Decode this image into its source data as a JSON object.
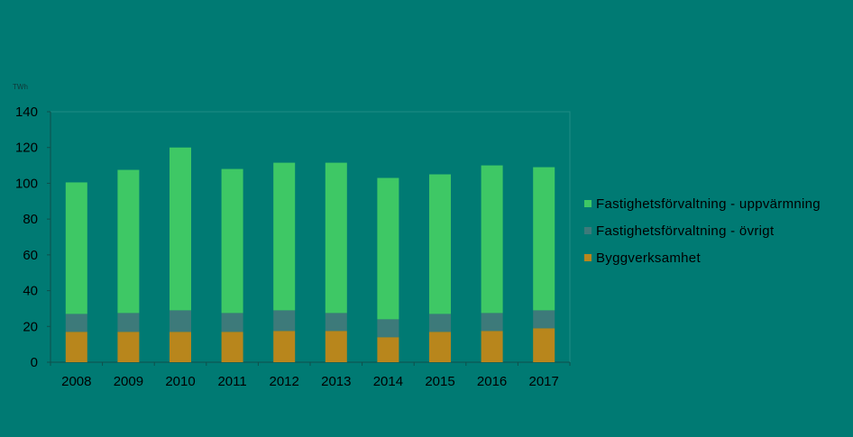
{
  "chart_data": {
    "type": "bar",
    "stacked": true,
    "unit_label": "TWh",
    "categories": [
      "2008",
      "2009",
      "2010",
      "2011",
      "2012",
      "2013",
      "2014",
      "2015",
      "2016",
      "2017"
    ],
    "series": [
      {
        "name": "Byggverksamhet",
        "color": "#b8861c",
        "values": [
          17,
          17,
          17,
          17,
          17.5,
          17.5,
          14,
          17,
          17.5,
          19
        ]
      },
      {
        "name": "Fastighetsförvaltning - övrigt",
        "color": "#3d7a7a",
        "values": [
          10,
          10.5,
          12,
          10.5,
          11.5,
          10,
          10,
          10,
          10,
          10
        ]
      },
      {
        "name": "Fastighetsförvaltning - uppvärmning",
        "color": "#3ec865",
        "values": [
          73.5,
          80,
          91,
          80.5,
          82.5,
          84,
          79,
          78,
          82.5,
          80
        ]
      }
    ],
    "ylim": [
      0,
      140
    ],
    "yticks": [
      0,
      20,
      40,
      60,
      80,
      100,
      120,
      140
    ],
    "grid": false,
    "legend_position": "right"
  }
}
